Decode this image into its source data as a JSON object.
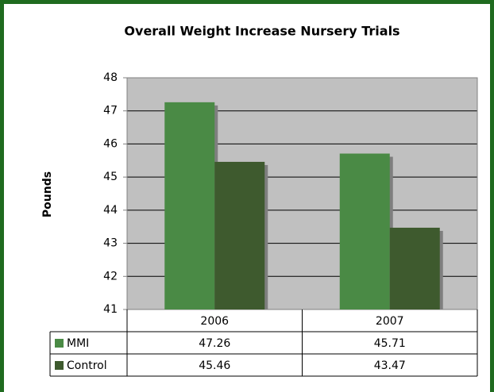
{
  "chart_data": {
    "type": "bar",
    "title": "Overall Weight Increase Nursery Trials",
    "y_label": "Pounds",
    "categories": [
      "2006",
      "2007"
    ],
    "series": [
      {
        "name": "MMI",
        "color": "#4a8a45",
        "values": [
          47.26,
          45.71
        ]
      },
      {
        "name": "Control",
        "color": "#3e5a2e",
        "values": [
          45.46,
          43.47
        ]
      }
    ],
    "ylim": [
      41,
      48
    ],
    "yticks": [
      41,
      42,
      43,
      44,
      45,
      46,
      47,
      48
    ],
    "grid": true
  }
}
